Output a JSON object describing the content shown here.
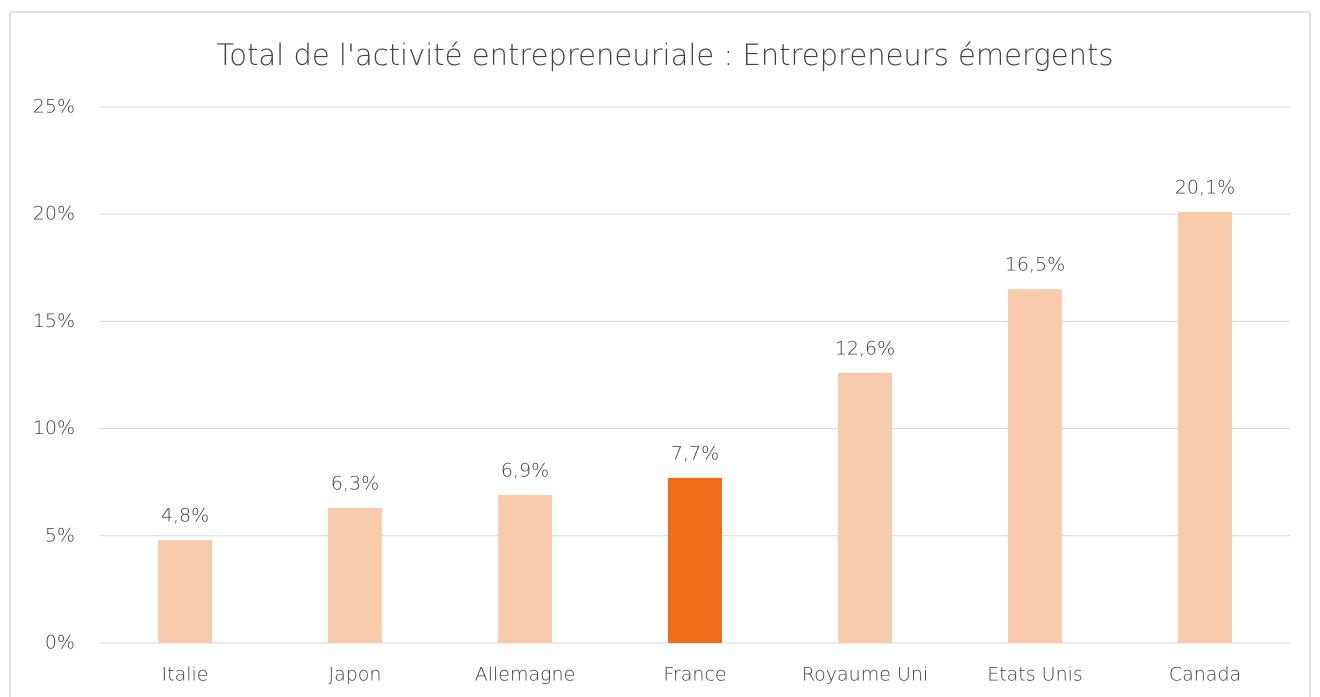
{
  "chart_data": {
    "type": "bar",
    "title": "Total de l'activité entrepreneuriale : Entrepreneurs émergents",
    "categories": [
      "Italie",
      "Japon",
      "Allemagne",
      "France",
      "Royaume Uni",
      "Etats Unis",
      "Canada"
    ],
    "values": [
      4.8,
      6.3,
      6.9,
      7.7,
      12.6,
      16.5,
      20.1
    ],
    "value_labels": [
      "4,8%",
      "6,3%",
      "6,9%",
      "7,7%",
      "12,6%",
      "16,5%",
      "20,1%"
    ],
    "colors": [
      "#f8cbad",
      "#f8cbad",
      "#f8cbad",
      "#ed6d19",
      "#f8cbad",
      "#f8cbad",
      "#f8cbad"
    ],
    "ylim": [
      0,
      25
    ],
    "yticks": [
      {
        "value": 0,
        "label": "0%"
      },
      {
        "value": 5,
        "label": "5%"
      },
      {
        "value": 10,
        "label": "10%"
      },
      {
        "value": 15,
        "label": "15%"
      },
      {
        "value": 20,
        "label": "20%"
      },
      {
        "value": 25,
        "label": "25%"
      }
    ],
    "grid": true
  }
}
